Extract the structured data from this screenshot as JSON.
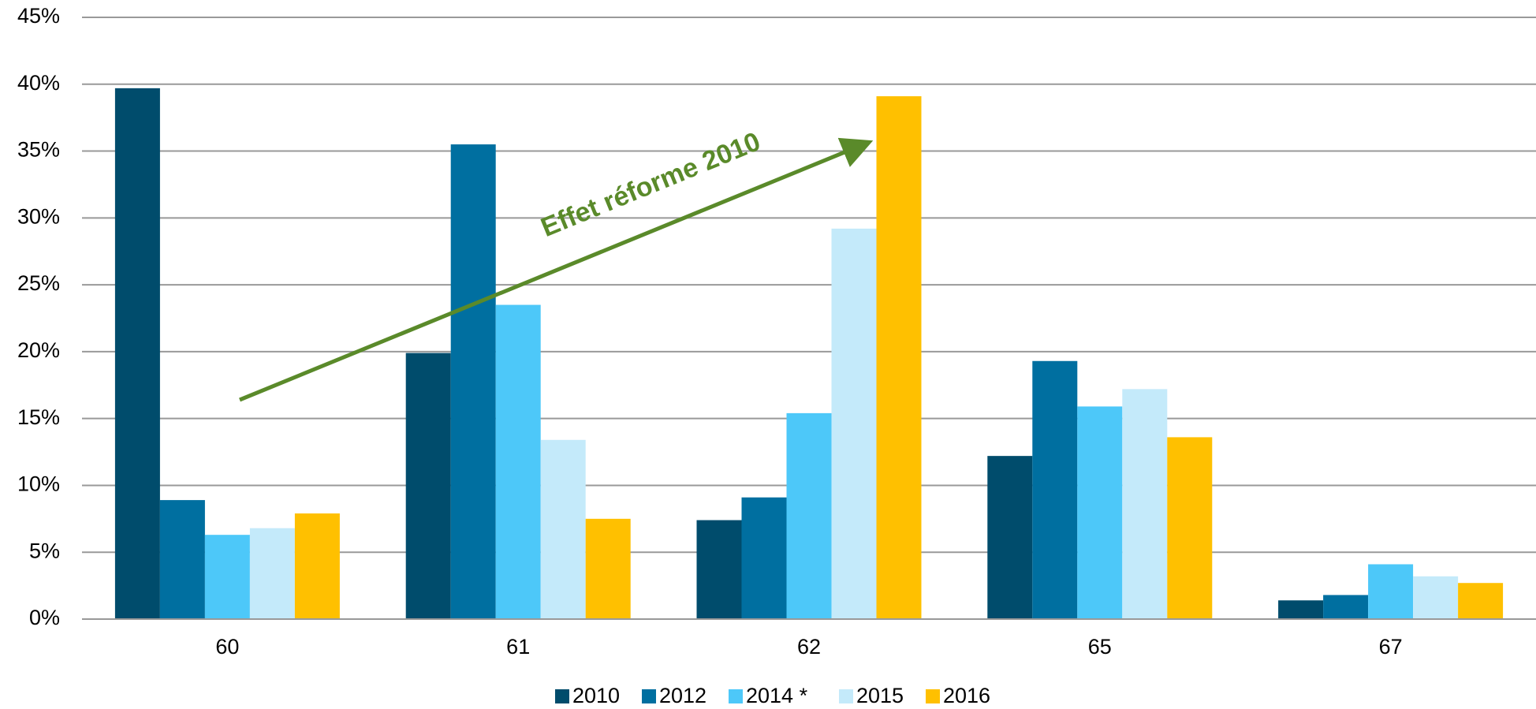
{
  "chart_data": {
    "type": "bar",
    "categories": [
      "60",
      "61",
      "62",
      "65",
      "67"
    ],
    "series": [
      {
        "name": "2010",
        "color": "#004c6c",
        "values": [
          39.7,
          19.9,
          7.4,
          12.2,
          1.4
        ]
      },
      {
        "name": "2012",
        "color": "#006fa0",
        "values": [
          8.9,
          35.5,
          9.1,
          19.3,
          1.8
        ]
      },
      {
        "name": "2014 *",
        "color": "#4dc8f9",
        "values": [
          6.3,
          23.5,
          15.4,
          15.9,
          4.1
        ]
      },
      {
        "name": "2015",
        "color": "#c4eafa",
        "values": [
          6.8,
          13.4,
          29.2,
          17.2,
          3.2
        ]
      },
      {
        "name": "2016",
        "color": "#ffc000",
        "values": [
          7.9,
          7.5,
          39.1,
          13.6,
          2.7
        ]
      }
    ],
    "ylim": [
      0,
      45
    ],
    "yticks": [
      {
        "value": 0,
        "label": "0%"
      },
      {
        "value": 5,
        "label": "5%"
      },
      {
        "value": 10,
        "label": "10%"
      },
      {
        "value": 15,
        "label": "15%"
      },
      {
        "value": 20,
        "label": "20%"
      },
      {
        "value": 25,
        "label": "25%"
      },
      {
        "value": 30,
        "label": "30%"
      },
      {
        "value": 35,
        "label": "35%"
      },
      {
        "value": 40,
        "label": "40%"
      },
      {
        "value": 45,
        "label": "45%"
      }
    ],
    "grid": true,
    "legend": "bottom",
    "annotation": "Effet réforme 2010"
  }
}
